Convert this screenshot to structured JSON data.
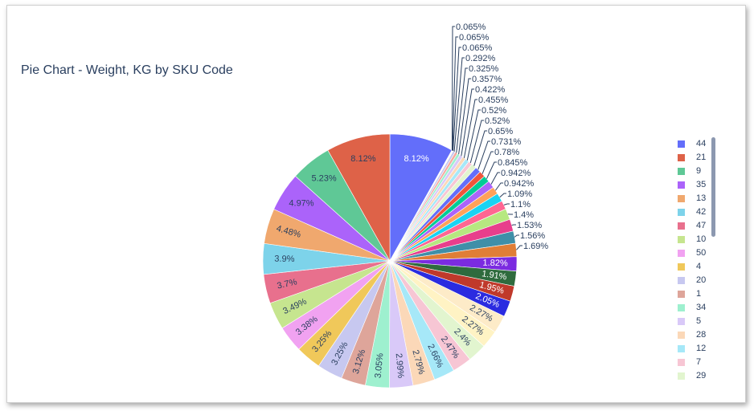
{
  "chart_title": "Pie Chart - Weight, KG by SKU Code",
  "chart_data": {
    "type": "pie",
    "title": "Pie Chart - Weight, KG by SKU Code",
    "direction": "clockwise",
    "start": "12 o'clock",
    "legend_position": "right",
    "slices": [
      {
        "label": "44",
        "percent": 8.12,
        "text": "8.12%",
        "color": "#636efa"
      },
      {
        "label": "",
        "percent": 0.065,
        "text": "0.065%",
        "color": "#b6e880"
      },
      {
        "label": "",
        "percent": 0.065,
        "text": "0.065%",
        "color": "#ff97ff"
      },
      {
        "label": "",
        "percent": 0.065,
        "text": "0.065%",
        "color": "#fecb52"
      },
      {
        "label": "",
        "percent": 0.292,
        "text": "0.292%",
        "color": "#c7c8f0"
      },
      {
        "label": "",
        "percent": 0.325,
        "text": "0.325%",
        "color": "#f6a8a0"
      },
      {
        "label": "",
        "percent": 0.357,
        "text": "0.357%",
        "color": "#9ef0cf"
      },
      {
        "label": "",
        "percent": 0.422,
        "text": "0.422%",
        "color": "#d9c9f8"
      },
      {
        "label": "",
        "percent": 0.455,
        "text": "0.455%",
        "color": "#fbd8b8"
      },
      {
        "label": "",
        "percent": 0.52,
        "text": "0.52%",
        "color": "#a6e8f8"
      },
      {
        "label": "",
        "percent": 0.52,
        "text": "0.52%",
        "color": "#f7c6d4"
      },
      {
        "label": "",
        "percent": 0.65,
        "text": "0.65%",
        "color": "#e2f5cf"
      },
      {
        "label": "",
        "percent": 0.731,
        "text": "0.731%",
        "color": "#636efa"
      },
      {
        "label": "",
        "percent": 0.78,
        "text": "0.78%",
        "color": "#ef553b"
      },
      {
        "label": "",
        "percent": 0.845,
        "text": "0.845%",
        "color": "#00cc96"
      },
      {
        "label": "",
        "percent": 0.942,
        "text": "0.942%",
        "color": "#ab63fa"
      },
      {
        "label": "",
        "percent": 0.942,
        "text": "0.942%",
        "color": "#ffa15a"
      },
      {
        "label": "",
        "percent": 1.09,
        "text": "1.09%",
        "color": "#19d3f3"
      },
      {
        "label": "",
        "percent": 1.1,
        "text": "1.1%",
        "color": "#ff6692"
      },
      {
        "label": "",
        "percent": 1.4,
        "text": "1.4%",
        "color": "#b6e880"
      },
      {
        "label": "",
        "percent": 1.53,
        "text": "1.53%",
        "color": "#e83e8c"
      },
      {
        "label": "",
        "percent": 1.56,
        "text": "1.56%",
        "color": "#3f8fa8"
      },
      {
        "label": "",
        "percent": 1.69,
        "text": "1.69%",
        "color": "#e07e36"
      },
      {
        "label": "",
        "percent": 1.82,
        "text": "1.82%",
        "color": "#7b2be0"
      },
      {
        "label": "",
        "percent": 1.91,
        "text": "1.91%",
        "color": "#2f6b3e"
      },
      {
        "label": "",
        "percent": 1.95,
        "text": "1.95%",
        "color": "#c0392b"
      },
      {
        "label": "",
        "percent": 2.05,
        "text": "2.05%",
        "color": "#2b2be0"
      },
      {
        "label": "",
        "percent": 2.27,
        "text": "2.27%",
        "color": "#fdebc8"
      },
      {
        "label": "",
        "percent": 2.27,
        "text": "2.27%",
        "color": "#fff3c4"
      },
      {
        "label": "29",
        "percent": 2.4,
        "text": "2.4%",
        "color": "#e2f5cf"
      },
      {
        "label": "7",
        "percent": 2.47,
        "text": "2.47%",
        "color": "#f7c6d4"
      },
      {
        "label": "12",
        "percent": 2.66,
        "text": "2.66%",
        "color": "#a6e8f8"
      },
      {
        "label": "28",
        "percent": 2.79,
        "text": "2.79%",
        "color": "#fbd8b8"
      },
      {
        "label": "5",
        "percent": 2.99,
        "text": "2.99%",
        "color": "#d9c9f8"
      },
      {
        "label": "34",
        "percent": 3.05,
        "text": "3.05%",
        "color": "#9ef0cf"
      },
      {
        "label": "1",
        "percent": 3.12,
        "text": "3.12%",
        "color": "#dea59a"
      },
      {
        "label": "20",
        "percent": 3.25,
        "text": "3.25%",
        "color": "#c7c8f0"
      },
      {
        "label": "4",
        "percent": 3.25,
        "text": "3.25%",
        "color": "#f0c85a"
      },
      {
        "label": "50",
        "percent": 3.38,
        "text": "3.38%",
        "color": "#f1a2f1"
      },
      {
        "label": "10",
        "percent": 3.49,
        "text": "3.49%",
        "color": "#c6e58f"
      },
      {
        "label": "47",
        "percent": 3.7,
        "text": "3.7%",
        "color": "#e8708d"
      },
      {
        "label": "42",
        "percent": 3.9,
        "text": "3.9%",
        "color": "#7dd3ea"
      },
      {
        "label": "13",
        "percent": 4.48,
        "text": "4.48%",
        "color": "#f0a86e"
      },
      {
        "label": "35",
        "percent": 4.97,
        "text": "4.97%",
        "color": "#ab63fa"
      },
      {
        "label": "9",
        "percent": 5.23,
        "text": "5.23%",
        "color": "#5fc896"
      },
      {
        "label": "21",
        "percent": 8.12,
        "text": "8.12%",
        "color": "#de6248"
      }
    ]
  },
  "legend": [
    {
      "label": "44",
      "color": "#636efa"
    },
    {
      "label": "21",
      "color": "#de6248"
    },
    {
      "label": "9",
      "color": "#5fc896"
    },
    {
      "label": "35",
      "color": "#ab63fa"
    },
    {
      "label": "13",
      "color": "#f0a86e"
    },
    {
      "label": "42",
      "color": "#7dd3ea"
    },
    {
      "label": "47",
      "color": "#e8708d"
    },
    {
      "label": "10",
      "color": "#c6e58f"
    },
    {
      "label": "50",
      "color": "#f1a2f1"
    },
    {
      "label": "4",
      "color": "#f0c85a"
    },
    {
      "label": "20",
      "color": "#c7c8f0"
    },
    {
      "label": "1",
      "color": "#dea59a"
    },
    {
      "label": "34",
      "color": "#9ef0cf"
    },
    {
      "label": "5",
      "color": "#d9c9f8"
    },
    {
      "label": "28",
      "color": "#fbd8b8"
    },
    {
      "label": "12",
      "color": "#a6e8f8"
    },
    {
      "label": "7",
      "color": "#f7c6d4"
    },
    {
      "label": "29",
      "color": "#e2f5cf"
    }
  ]
}
